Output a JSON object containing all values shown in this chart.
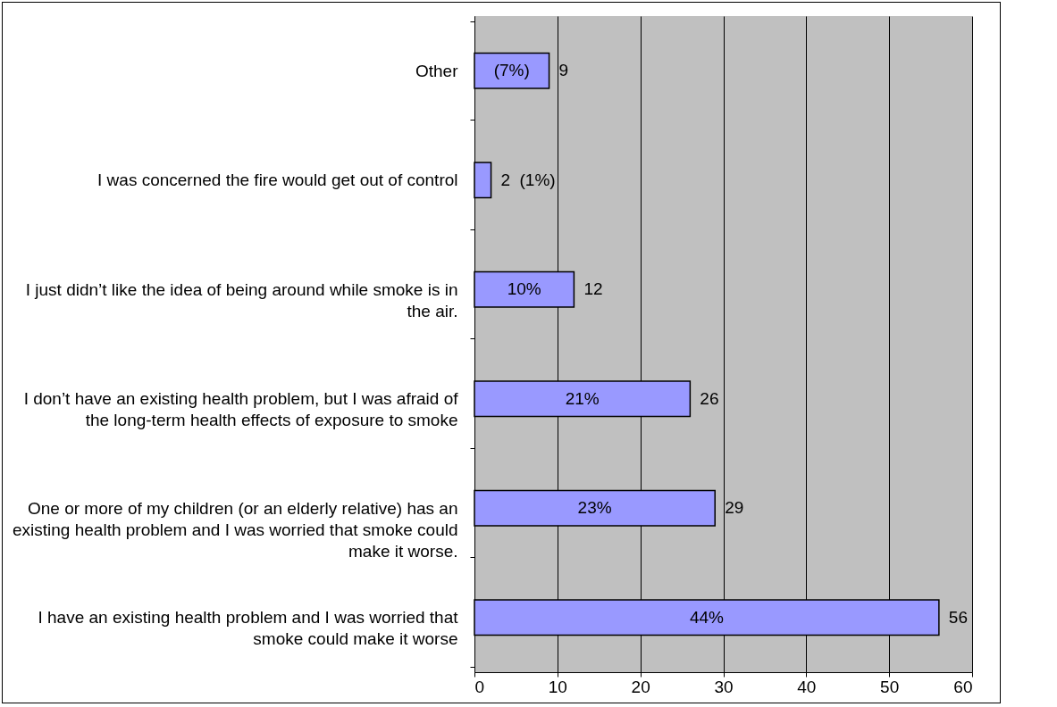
{
  "chart_data": {
    "type": "bar",
    "orientation": "horizontal",
    "categories": [
      "Other",
      "I was concerned the fire would get out of control",
      "I just didn’t like the idea of being around while smoke is in the air.",
      "I don’t have an existing health problem, but I was afraid of the long-term health effects of exposure to smoke",
      "One or more of my children (or an elderly relative) has an existing health problem and I was worried that smoke could make it worse.",
      "I have an existing health problem and I was worried that smoke could make it worse"
    ],
    "values": [
      9,
      2,
      12,
      26,
      29,
      56
    ],
    "color": "#9999ff",
    "xlim": [
      0,
      60
    ],
    "xticks": [
      0,
      10,
      20,
      30,
      40,
      50,
      60
    ],
    "grid": "x",
    "data_labels": true,
    "annotations": [
      "(7%)",
      "(1%)",
      "10%",
      "21%",
      "23%",
      "44%"
    ]
  }
}
